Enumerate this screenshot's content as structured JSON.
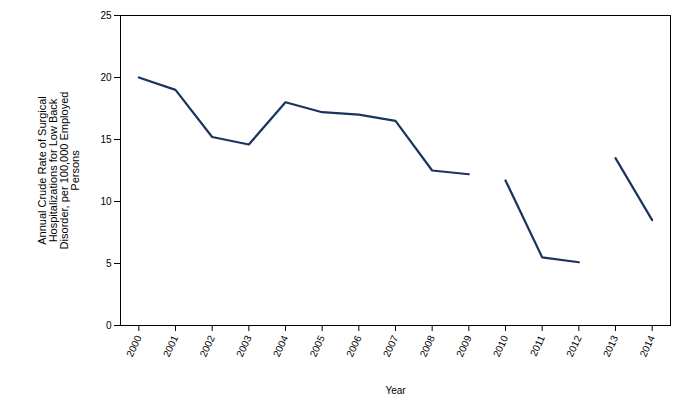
{
  "chart_data": {
    "type": "line",
    "xlabel": "Year",
    "ylabel": "Annual Crude Rate of Surgical\nHospitalizations for Low Back\nDisorder, per 100,000 Employed\nPersons",
    "x": [
      2000,
      2001,
      2002,
      2003,
      2004,
      2005,
      2006,
      2007,
      2008,
      2009,
      2010,
      2011,
      2012,
      2013,
      2014
    ],
    "series": [
      {
        "color": "#1a3460",
        "values": [
          20.0,
          19.0,
          15.2,
          14.6,
          18.0,
          17.2,
          17.0,
          16.5,
          12.5,
          12.2,
          null,
          null,
          null,
          null,
          null
        ]
      },
      {
        "color": "#1a3460",
        "values": [
          null,
          null,
          null,
          null,
          null,
          null,
          null,
          null,
          null,
          null,
          11.7,
          5.5,
          5.1,
          null,
          null
        ]
      },
      {
        "color": "#1a3460",
        "values": [
          null,
          null,
          null,
          null,
          null,
          null,
          null,
          null,
          null,
          null,
          null,
          null,
          null,
          13.5,
          8.5
        ]
      }
    ],
    "xlim": [
      1999.5,
      2014.5
    ],
    "xticks": [
      2000,
      2001,
      2002,
      2003,
      2004,
      2005,
      2006,
      2007,
      2008,
      2009,
      2010,
      2011,
      2012,
      2013,
      2014
    ],
    "ylim": [
      0,
      25
    ],
    "yticks": [
      0,
      5,
      10,
      15,
      20,
      25
    ],
    "grid": false
  }
}
